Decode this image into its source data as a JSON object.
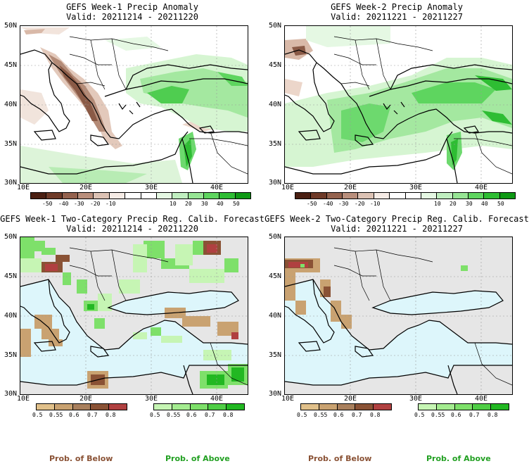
{
  "panels": [
    {
      "title": "GEFS Week-1 Precip Anomaly",
      "valid": "Valid: 20211214 - 20211220"
    },
    {
      "title": "GEFS Week-2 Precip Anomaly",
      "valid": "Valid: 20211221 - 20211227"
    },
    {
      "title": "GEFS Week-1 Two-Category Precip Reg. Calib. Forecast",
      "valid": "Valid: 20211214 - 20211220"
    },
    {
      "title": "GEFS Week-2 Two-Category Precip Reg. Calib. Forecast",
      "valid": "Valid: 20211221 - 20211227"
    }
  ],
  "axes": {
    "lat_labels": [
      "50N",
      "45N",
      "40N",
      "35N",
      "30N"
    ],
    "lon_labels": [
      "10E",
      "20E",
      "30E",
      "40E"
    ]
  },
  "anomaly_scale": {
    "labels": [
      "-50",
      "-40",
      "-30",
      "-20",
      "-10",
      "10",
      "20",
      "30",
      "40",
      "50"
    ],
    "colors": [
      "#4a1f12",
      "#6e3a28",
      "#94624e",
      "#b98f7c",
      "#dcc2b4",
      "#f6ece6",
      "#ffffff",
      "#ffffff",
      "#e5f8e3",
      "#c0efc0",
      "#96e594",
      "#5ed55f",
      "#2ebd33",
      "#0e9914"
    ]
  },
  "prob_scale": {
    "labels": [
      "0.5",
      "0.55",
      "0.6",
      "0.7",
      "0.8"
    ],
    "below_colors": [
      "#e0c08a",
      "#c9a271",
      "#a9805d",
      "#8a5235",
      "#b04040"
    ],
    "above_colors": [
      "#c6f5b4",
      "#a4ec90",
      "#7ee06a",
      "#4fce45",
      "#22b822"
    ],
    "below_title": "Prob. of Below",
    "above_title": "Prob. of Above"
  },
  "map_colors": {
    "land_prob": "#e6e6e6",
    "sea_prob": "#ddf6fb",
    "coast": "#000000"
  }
}
